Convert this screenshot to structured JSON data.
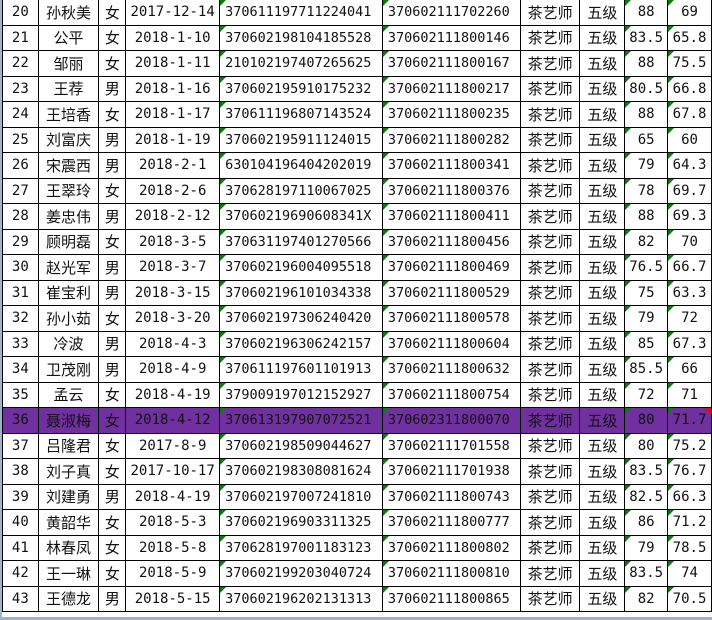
{
  "colors": {
    "highlight_row": "#7030a0",
    "comment_marker": "#0a7a0a",
    "error_marker": "#ff0000",
    "grid_line": "#000000"
  },
  "highlighted_row_no": "36",
  "rows": [
    {
      "no": "20",
      "name": "孙秋美",
      "gender": "女",
      "date": "2017-12-14",
      "id": "370611197711224041",
      "cert": "370602111702260",
      "job": "茶艺师",
      "level": "五级",
      "score1": "88",
      "score2": "69"
    },
    {
      "no": "21",
      "name": "公平",
      "gender": "女",
      "date": "2018-1-10",
      "id": "370602198104185528",
      "cert": "370602111800146",
      "job": "茶艺师",
      "level": "五级",
      "score1": "83.5",
      "score2": "65.8"
    },
    {
      "no": "22",
      "name": "邹丽",
      "gender": "女",
      "date": "2018-1-11",
      "id": "210102197407265625",
      "cert": "370602111800167",
      "job": "茶艺师",
      "level": "五级",
      "score1": "88",
      "score2": "75.5"
    },
    {
      "no": "23",
      "name": "王荐",
      "gender": "男",
      "date": "2018-1-16",
      "id": "370602195910175232",
      "cert": "370602111800217",
      "job": "茶艺师",
      "level": "五级",
      "score1": "80.5",
      "score2": "66.8"
    },
    {
      "no": "24",
      "name": "王培香",
      "gender": "女",
      "date": "2018-1-17",
      "id": "370611196807143524",
      "cert": "370602111800235",
      "job": "茶艺师",
      "level": "五级",
      "score1": "88",
      "score2": "67.8"
    },
    {
      "no": "25",
      "name": "刘富庆",
      "gender": "男",
      "date": "2018-1-19",
      "id": "370602195911124015",
      "cert": "370602111800282",
      "job": "茶艺师",
      "level": "五级",
      "score1": "65",
      "score2": "60"
    },
    {
      "no": "26",
      "name": "宋震西",
      "gender": "男",
      "date": "2018-2-1",
      "id": "630104196404202019",
      "cert": "370602111800341",
      "job": "茶艺师",
      "level": "五级",
      "score1": "79",
      "score2": "64.3"
    },
    {
      "no": "27",
      "name": "王翠玲",
      "gender": "女",
      "date": "2018-2-6",
      "id": "370628197110067025",
      "cert": "370602111800376",
      "job": "茶艺师",
      "level": "五级",
      "score1": "78",
      "score2": "69.7"
    },
    {
      "no": "28",
      "name": "姜忠伟",
      "gender": "男",
      "date": "2018-2-12",
      "id": "37060219690608341X",
      "cert": "370602111800411",
      "job": "茶艺师",
      "level": "五级",
      "score1": "88",
      "score2": "69.3"
    },
    {
      "no": "29",
      "name": "顾明磊",
      "gender": "女",
      "date": "2018-3-5",
      "id": "370631197401270566",
      "cert": "370602111800456",
      "job": "茶艺师",
      "level": "五级",
      "score1": "82",
      "score2": "70"
    },
    {
      "no": "30",
      "name": "赵光军",
      "gender": "男",
      "date": "2018-3-7",
      "id": "370602196004095518",
      "cert": "370602111800469",
      "job": "茶艺师",
      "level": "五级",
      "score1": "76.5",
      "score2": "66.7"
    },
    {
      "no": "31",
      "name": "崔宝利",
      "gender": "男",
      "date": "2018-3-15",
      "id": "370602196101034338",
      "cert": "370602111800529",
      "job": "茶艺师",
      "level": "五级",
      "score1": "75",
      "score2": "63.3"
    },
    {
      "no": "32",
      "name": "孙小茹",
      "gender": "女",
      "date": "2018-3-20",
      "id": "370602197306240420",
      "cert": "370602111800578",
      "job": "茶艺师",
      "level": "五级",
      "score1": "79",
      "score2": "72"
    },
    {
      "no": "33",
      "name": "冷波",
      "gender": "男",
      "date": "2018-4-3",
      "id": "370602196306242157",
      "cert": "370602111800604",
      "job": "茶艺师",
      "level": "五级",
      "score1": "85",
      "score2": "67.3"
    },
    {
      "no": "34",
      "name": "卫茂刚",
      "gender": "男",
      "date": "2018-4-9",
      "id": "370611197601101913",
      "cert": "370602111800632",
      "job": "茶艺师",
      "level": "五级",
      "score1": "85.5",
      "score2": "66"
    },
    {
      "no": "35",
      "name": "孟云",
      "gender": "女",
      "date": "2018-4-19",
      "id": "379009197012152927",
      "cert": "370602111800754",
      "job": "茶艺师",
      "level": "五级",
      "score1": "72",
      "score2": "71"
    },
    {
      "no": "36",
      "name": "聂淑梅",
      "gender": "女",
      "date": "2018-4-12",
      "id": "370613197907072521",
      "cert": "370602311800070",
      "job": "茶艺师",
      "level": "五级",
      "score1": "80",
      "score2": "71.7"
    },
    {
      "no": "37",
      "name": "吕隆君",
      "gender": "女",
      "date": "2017-8-9",
      "id": "370602198509044627",
      "cert": "370602111701558",
      "job": "茶艺师",
      "level": "五级",
      "score1": "80",
      "score2": "75.2"
    },
    {
      "no": "38",
      "name": "刘子真",
      "gender": "女",
      "date": "2017-10-17",
      "id": "370602198308081624",
      "cert": "370602111701938",
      "job": "茶艺师",
      "level": "五级",
      "score1": "83.5",
      "score2": "76.7"
    },
    {
      "no": "39",
      "name": "刘建勇",
      "gender": "男",
      "date": "2018-4-19",
      "id": "370602197007241810",
      "cert": "370602111800743",
      "job": "茶艺师",
      "level": "五级",
      "score1": "82.5",
      "score2": "66.3"
    },
    {
      "no": "40",
      "name": "黄韶华",
      "gender": "女",
      "date": "2018-5-3",
      "id": "370602196903311325",
      "cert": "370602111800777",
      "job": "茶艺师",
      "level": "五级",
      "score1": "86",
      "score2": "71.2"
    },
    {
      "no": "41",
      "name": "林春凤",
      "gender": "女",
      "date": "2018-5-8",
      "id": "370628197001183123",
      "cert": "370602111800802",
      "job": "茶艺师",
      "level": "五级",
      "score1": "79",
      "score2": "78.5"
    },
    {
      "no": "42",
      "name": "王一琳",
      "gender": "女",
      "date": "2018-5-9",
      "id": "370602199203040724",
      "cert": "370602111800810",
      "job": "茶艺师",
      "level": "五级",
      "score1": "83.5",
      "score2": "74"
    },
    {
      "no": "43",
      "name": "王德龙",
      "gender": "男",
      "date": "2018-5-15",
      "id": "370602196202131313",
      "cert": "370602111800865",
      "job": "茶艺师",
      "level": "五级",
      "score1": "82",
      "score2": "70.5"
    }
  ]
}
